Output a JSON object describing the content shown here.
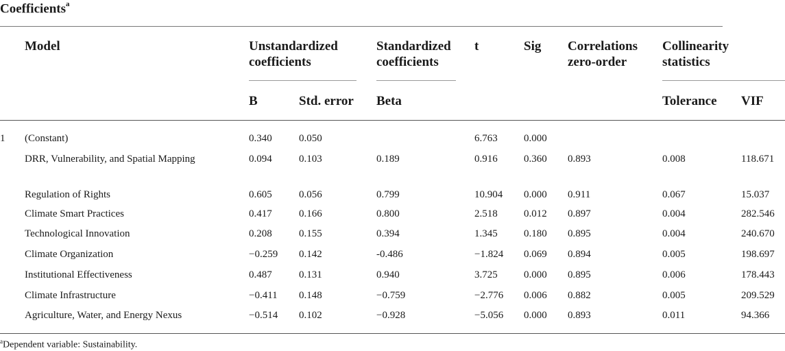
{
  "title": {
    "text": "Coefficients",
    "sup": "a"
  },
  "header": {
    "model": "Model",
    "unstd_line1": "Unstandardized",
    "unstd_line2": "coefficients",
    "std_line1": "Standardized",
    "std_line2": "coefficients",
    "t": "t",
    "sig": "Sig",
    "corr_line1": "Correlations",
    "corr_line2": "zero-order",
    "coll_line1": "Collinearity",
    "coll_line2": "statistics",
    "b": "B",
    "std_error": "Std. error",
    "beta": "Beta",
    "tolerance": "Tolerance",
    "vif": "VIF"
  },
  "rows": [
    {
      "num": "1",
      "name": "(Constant)",
      "b": "0.340",
      "se": "0.050",
      "beta": "",
      "t": "6.763",
      "sig": "0.000",
      "corr": "",
      "tol": "",
      "vif": ""
    },
    {
      "num": "",
      "name": "DRR, Vulnerability, and Spatial Mapping",
      "b": "0.094",
      "se": "0.103",
      "beta": "0.189",
      "t": "0.916",
      "sig": "0.360",
      "corr": "0.893",
      "tol": "0.008",
      "vif": "118.671"
    },
    {
      "num": "",
      "name": "Regulation of Rights",
      "b": "0.605",
      "se": "0.056",
      "beta": "0.799",
      "t": "10.904",
      "sig": "0.000",
      "corr": "0.911",
      "tol": "0.067",
      "vif": "15.037"
    },
    {
      "num": "",
      "name": "Climate Smart Practices",
      "b": "0.417",
      "se": "0.166",
      "beta": "0.800",
      "t": "2.518",
      "sig": "0.012",
      "corr": "0.897",
      "tol": "0.004",
      "vif": "282.546"
    },
    {
      "num": "",
      "name": "Technological Innovation",
      "b": "0.208",
      "se": "0.155",
      "beta": "0.394",
      "t": "1.345",
      "sig": "0.180",
      "corr": "0.895",
      "tol": "0.004",
      "vif": "240.670"
    },
    {
      "num": "",
      "name": "Climate Organization",
      "b": "−0.259",
      "se": "0.142",
      "beta": "-0.486",
      "t": "−1.824",
      "sig": "0.069",
      "corr": "0.894",
      "tol": "0.005",
      "vif": "198.697"
    },
    {
      "num": "",
      "name": "Institutional Effectiveness",
      "b": "0.487",
      "se": "0.131",
      "beta": "0.940",
      "t": "3.725",
      "sig": "0.000",
      "corr": "0.895",
      "tol": "0.006",
      "vif": "178.443"
    },
    {
      "num": "",
      "name": "Climate Infrastructure",
      "b": "−0.411",
      "se": "0.148",
      "beta": "−0.759",
      "t": "−2.776",
      "sig": "0.006",
      "corr": "0.882",
      "tol": "0.005",
      "vif": "209.529"
    },
    {
      "num": "",
      "name": "Agriculture, Water, and Energy Nexus",
      "b": "−0.514",
      "se": "0.102",
      "beta": "−0.928",
      "t": "−5.056",
      "sig": "0.000",
      "corr": "0.893",
      "tol": "0.011",
      "vif": "94.366"
    }
  ],
  "footnote": {
    "sup": "a",
    "text": "Dependent variable: Sustainability."
  }
}
